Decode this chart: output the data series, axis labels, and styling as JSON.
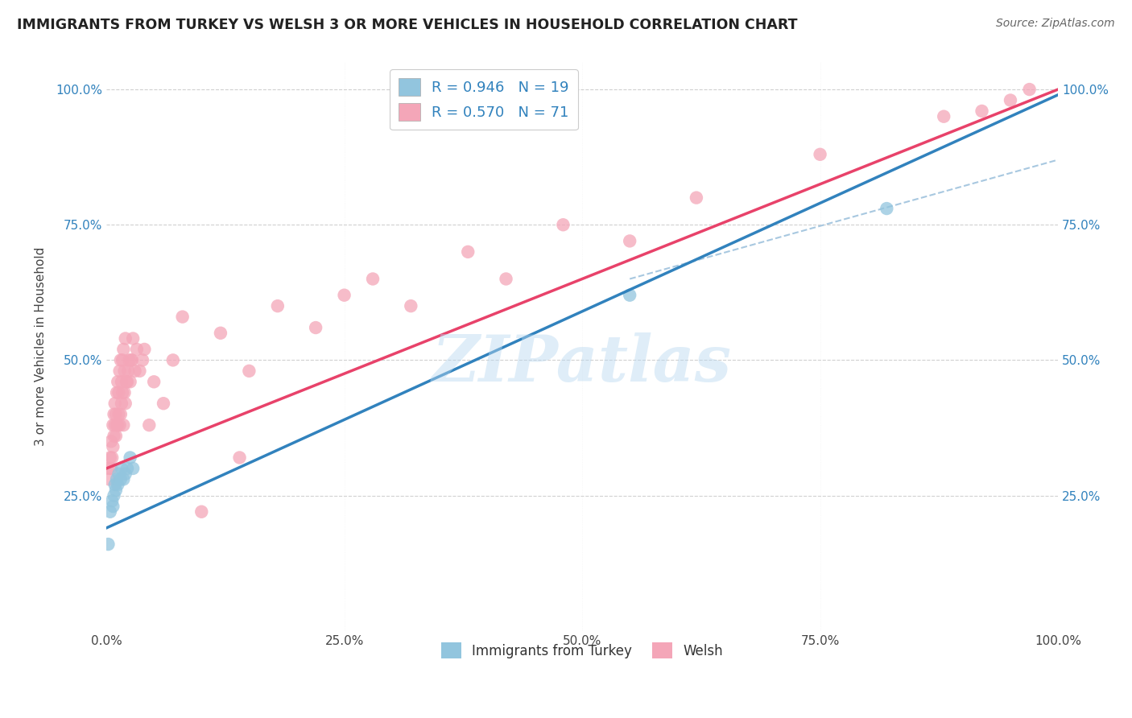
{
  "title": "IMMIGRANTS FROM TURKEY VS WELSH 3 OR MORE VEHICLES IN HOUSEHOLD CORRELATION CHART",
  "source": "Source: ZipAtlas.com",
  "ylabel": "3 or more Vehicles in Household",
  "xlim": [
    0,
    1
  ],
  "ylim": [
    0,
    1
  ],
  "xticks": [
    0.0,
    0.25,
    0.5,
    0.75,
    1.0
  ],
  "yticks": [
    0.0,
    0.25,
    0.5,
    0.75,
    1.0
  ],
  "xtick_labels": [
    "0.0%",
    "25.0%",
    "50.0%",
    "75.0%",
    "100.0%"
  ],
  "ytick_labels_left": [
    "",
    "25.0%",
    "50.0%",
    "75.0%",
    "100.0%"
  ],
  "ytick_labels_right": [
    "",
    "25.0%",
    "50.0%",
    "75.0%",
    "100.0%"
  ],
  "blue_color": "#92c5de",
  "pink_color": "#f4a6b8",
  "blue_line_color": "#3182bd",
  "pink_line_color": "#e8426a",
  "legend_text_color": "#3182bd",
  "legend_blue_r": "R = 0.946",
  "legend_blue_n": "N = 19",
  "legend_pink_r": "R = 0.570",
  "legend_pink_n": "N = 71",
  "watermark": "ZIPatlas",
  "watermark_color": "#b8d8f0",
  "grid_color": "#d0d0d0",
  "background_color": "#ffffff",
  "blue_scatter_x": [
    0.002,
    0.004,
    0.006,
    0.007,
    0.008,
    0.009,
    0.01,
    0.011,
    0.012,
    0.013,
    0.015,
    0.016,
    0.018,
    0.02,
    0.022,
    0.025,
    0.028,
    0.55,
    0.82
  ],
  "blue_scatter_y": [
    0.16,
    0.22,
    0.24,
    0.23,
    0.25,
    0.27,
    0.26,
    0.28,
    0.27,
    0.29,
    0.28,
    0.3,
    0.28,
    0.29,
    0.3,
    0.32,
    0.3,
    0.62,
    0.78
  ],
  "pink_scatter_x": [
    0.002,
    0.003,
    0.004,
    0.005,
    0.005,
    0.006,
    0.007,
    0.007,
    0.008,
    0.008,
    0.009,
    0.009,
    0.01,
    0.01,
    0.011,
    0.011,
    0.012,
    0.012,
    0.013,
    0.013,
    0.014,
    0.014,
    0.015,
    0.015,
    0.016,
    0.016,
    0.017,
    0.017,
    0.018,
    0.018,
    0.019,
    0.019,
    0.02,
    0.02,
    0.021,
    0.022,
    0.023,
    0.024,
    0.025,
    0.026,
    0.027,
    0.028,
    0.03,
    0.032,
    0.035,
    0.038,
    0.04,
    0.045,
    0.05,
    0.06,
    0.07,
    0.08,
    0.12,
    0.15,
    0.18,
    0.22,
    0.28,
    0.32,
    0.38,
    0.42,
    0.48,
    0.55,
    0.62,
    0.75,
    0.88,
    0.92,
    0.95,
    0.97,
    0.1,
    0.14,
    0.25
  ],
  "pink_scatter_y": [
    0.3,
    0.28,
    0.32,
    0.3,
    0.35,
    0.32,
    0.34,
    0.38,
    0.36,
    0.4,
    0.38,
    0.42,
    0.36,
    0.4,
    0.38,
    0.44,
    0.38,
    0.46,
    0.4,
    0.44,
    0.38,
    0.48,
    0.4,
    0.5,
    0.42,
    0.46,
    0.44,
    0.5,
    0.38,
    0.52,
    0.44,
    0.48,
    0.42,
    0.54,
    0.46,
    0.46,
    0.48,
    0.5,
    0.46,
    0.5,
    0.5,
    0.54,
    0.48,
    0.52,
    0.48,
    0.5,
    0.52,
    0.38,
    0.46,
    0.42,
    0.5,
    0.58,
    0.55,
    0.48,
    0.6,
    0.56,
    0.65,
    0.6,
    0.7,
    0.65,
    0.75,
    0.72,
    0.8,
    0.88,
    0.95,
    0.96,
    0.98,
    1.0,
    0.22,
    0.32,
    0.62
  ],
  "blue_line_x0": 0.0,
  "blue_line_y0": 0.19,
  "blue_line_x1": 1.0,
  "blue_line_y1": 0.99,
  "pink_line_x0": 0.0,
  "pink_line_y0": 0.3,
  "pink_line_x1": 1.0,
  "pink_line_y1": 1.0,
  "dash_line_x0": 0.55,
  "dash_line_y0": 0.65,
  "dash_line_x1": 1.0,
  "dash_line_y1": 0.87
}
